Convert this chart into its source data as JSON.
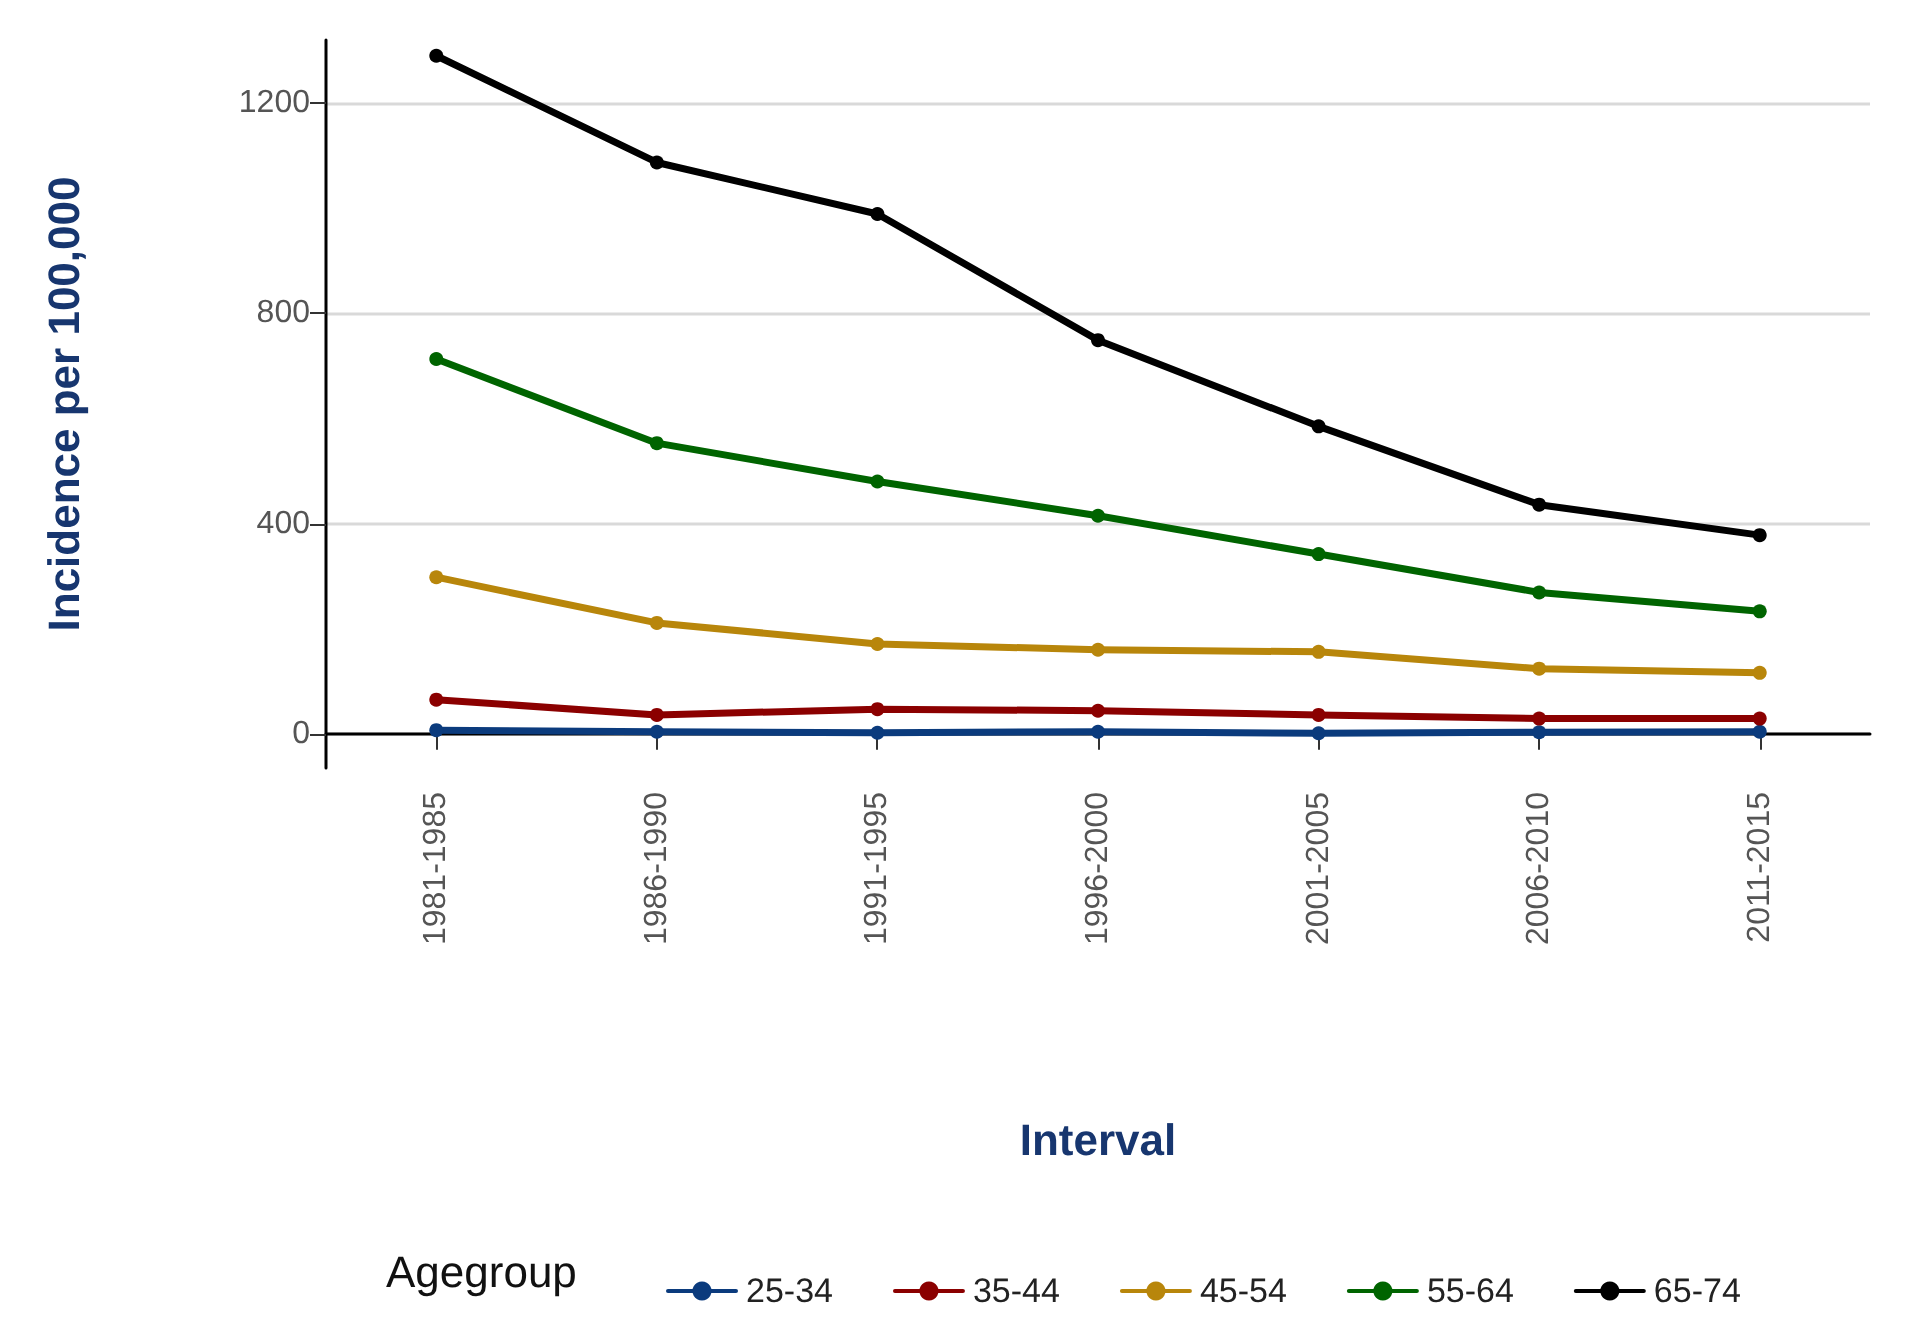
{
  "chart_data": {
    "type": "line",
    "xlabel": "Interval",
    "ylabel": "Incidence per 100,000",
    "legend_title": "Agegroup",
    "categories": [
      "1981-1985",
      "1986-1990",
      "1991-1995",
      "1996-2000",
      "2001-2005",
      "2006-2010",
      "2011-2015"
    ],
    "series": [
      {
        "name": "25-34",
        "color": "#0b3b7d",
        "values": [
          7,
          4,
          2,
          4,
          1,
          3,
          4
        ]
      },
      {
        "name": "35-44",
        "color": "#8b0000",
        "values": [
          65,
          36,
          47,
          44,
          36,
          29,
          29
        ]
      },
      {
        "name": "45-54",
        "color": "#b8860b",
        "values": [
          298,
          211,
          171,
          160,
          156,
          124,
          116
        ]
      },
      {
        "name": "55-64",
        "color": "#006400",
        "values": [
          713,
          553,
          480,
          415,
          342,
          269,
          233
        ]
      },
      {
        "name": "65-74",
        "color": "#000000",
        "values": [
          1290,
          1087,
          989,
          749,
          585,
          436,
          378
        ]
      }
    ],
    "ylim": [
      -65,
      1320
    ],
    "yticks": [
      0,
      400,
      800,
      1200
    ],
    "grid": "y",
    "legend": "bottom",
    "marker": "circle",
    "line_style": "solid"
  }
}
